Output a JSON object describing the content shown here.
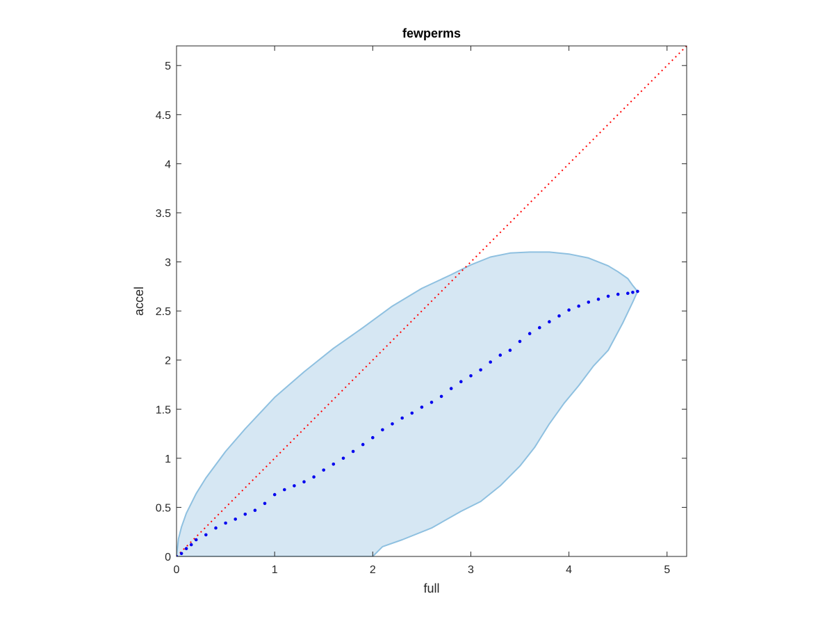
{
  "chart_data": {
    "type": "scatter",
    "title": "fewperms",
    "xlabel": "full",
    "ylabel": "accel",
    "xlim": [
      0,
      5.2
    ],
    "ylim": [
      0,
      5.2
    ],
    "xticks": [
      0,
      1,
      2,
      3,
      4,
      5
    ],
    "yticks": [
      0,
      0.5,
      1,
      1.5,
      2,
      2.5,
      3,
      3.5,
      4,
      4.5,
      5
    ],
    "xtick_labels": [
      "0",
      "1",
      "2",
      "3",
      "4",
      "5"
    ],
    "ytick_labels": [
      "0",
      "0.5",
      "1",
      "1.5",
      "2",
      "2.5",
      "3",
      "3.5",
      "4",
      "4.5",
      "5"
    ],
    "grid": false,
    "colors": {
      "points": "#0000ee",
      "region_fill": "#d6e7f3",
      "region_edge": "#8ec0e0",
      "identity_line": "#ff0000",
      "axes": "#262626"
    },
    "series": [
      {
        "type": "scatter",
        "x": [
          0.0,
          0.05,
          0.1,
          0.15,
          0.2,
          0.3,
          0.4,
          0.5,
          0.6,
          0.7,
          0.8,
          0.9,
          1.0,
          1.1,
          1.2,
          1.3,
          1.4,
          1.5,
          1.6,
          1.7,
          1.8,
          1.9,
          2.0,
          2.1,
          2.2,
          2.3,
          2.4,
          2.5,
          2.6,
          2.7,
          2.8,
          2.9,
          3.0,
          3.1,
          3.2,
          3.3,
          3.4,
          3.5,
          3.6,
          3.7,
          3.8,
          3.9,
          4.0,
          4.1,
          4.2,
          4.3,
          4.4,
          4.5,
          4.6,
          4.65,
          4.7
        ],
        "y": [
          0.0,
          0.03,
          0.08,
          0.12,
          0.17,
          0.22,
          0.29,
          0.34,
          0.38,
          0.43,
          0.47,
          0.54,
          0.63,
          0.68,
          0.72,
          0.76,
          0.81,
          0.88,
          0.94,
          1.0,
          1.07,
          1.14,
          1.21,
          1.29,
          1.35,
          1.41,
          1.46,
          1.52,
          1.57,
          1.63,
          1.71,
          1.78,
          1.84,
          1.9,
          1.98,
          2.05,
          2.1,
          2.19,
          2.27,
          2.33,
          2.39,
          2.45,
          2.51,
          2.55,
          2.59,
          2.62,
          2.65,
          2.67,
          2.68,
          2.69,
          2.7
        ]
      },
      {
        "type": "band",
        "upper": {
          "x": [
            0.0,
            0.02,
            0.05,
            0.1,
            0.2,
            0.3,
            0.5,
            0.7,
            1.0,
            1.3,
            1.6,
            1.9,
            2.2,
            2.5,
            2.8,
            3.0,
            3.2,
            3.4,
            3.6,
            3.8,
            4.0,
            4.2,
            4.4,
            4.5,
            4.6,
            4.65,
            4.7
          ],
          "y": [
            0.0,
            0.18,
            0.3,
            0.44,
            0.64,
            0.8,
            1.07,
            1.3,
            1.62,
            1.88,
            2.12,
            2.33,
            2.55,
            2.73,
            2.87,
            2.97,
            3.05,
            3.09,
            3.1,
            3.1,
            3.08,
            3.04,
            2.96,
            2.9,
            2.83,
            2.76,
            2.7
          ]
        },
        "lower": {
          "x": [
            0.0,
            0.5,
            1.0,
            1.5,
            2.0,
            2.05,
            2.1,
            2.3,
            2.6,
            2.9,
            3.1,
            3.3,
            3.5,
            3.65,
            3.8,
            3.95,
            4.1,
            4.25,
            4.4,
            4.55,
            4.65,
            4.7
          ],
          "y": [
            0.0,
            0.0,
            0.0,
            0.0,
            0.0,
            0.05,
            0.1,
            0.17,
            0.29,
            0.46,
            0.56,
            0.72,
            0.92,
            1.11,
            1.35,
            1.56,
            1.74,
            1.94,
            2.1,
            2.38,
            2.59,
            2.7
          ]
        }
      },
      {
        "type": "line",
        "style": "dotted",
        "x": [
          0,
          5.2
        ],
        "y": [
          0,
          5.2
        ]
      }
    ]
  }
}
